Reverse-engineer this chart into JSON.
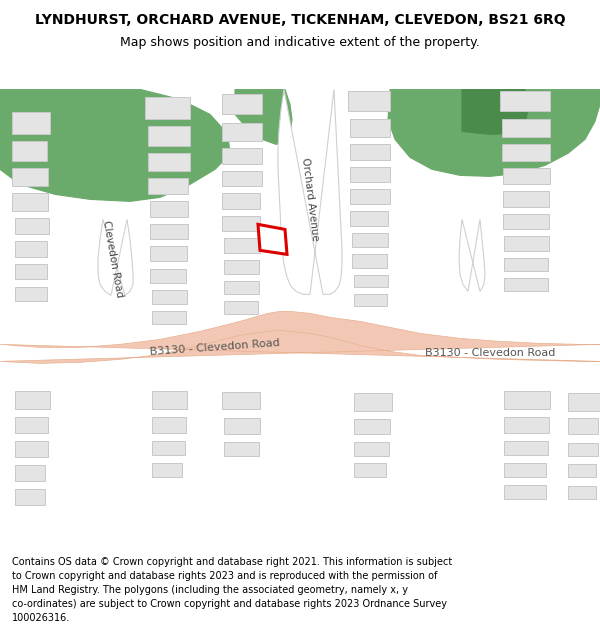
{
  "title": "LYNDHURST, ORCHARD AVENUE, TICKENHAM, CLEVEDON, BS21 6RQ",
  "subtitle": "Map shows position and indicative extent of the property.",
  "footer": "Contains OS data © Crown copyright and database right 2021. This information is subject to Crown copyright and database rights 2023 and is reproduced with the permission of HM Land Registry. The polygons (including the associated geometry, namely x, y co-ordinates) are subject to Crown copyright and database rights 2023 Ordnance Survey 100026316.",
  "bg_color": "#ffffff",
  "map_bg": "#f8f8f8",
  "green_color": "#6aaa6a",
  "green_dark": "#4a8a4a",
  "road_fill": "#f2c8b4",
  "road_edge": "#e8b090",
  "building_fill": "#e4e4e4",
  "building_edge": "#c8c8c8",
  "road_white": "#ffffff",
  "road_gray_edge": "#d0d0d0",
  "highlight_color": "#dd0000",
  "text_color": "#444444",
  "figsize": [
    6.0,
    6.25
  ],
  "dpi": 100
}
